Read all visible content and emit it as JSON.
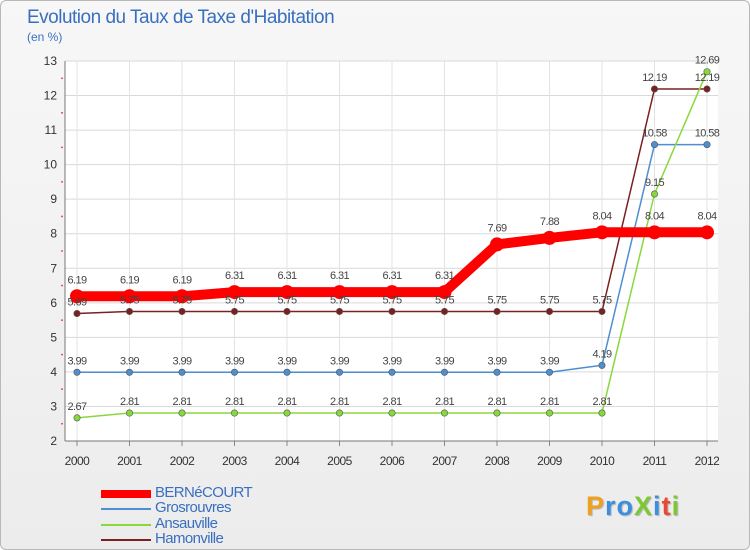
{
  "chart_data": {
    "type": "line",
    "title": "Evolution du Taux de Taxe d'Habitation",
    "subtitle": "(en %)",
    "x": [
      "2000",
      "2001",
      "2002",
      "2003",
      "2004",
      "2005",
      "2006",
      "2007",
      "2008",
      "2009",
      "2010",
      "2011",
      "2012"
    ],
    "ylim": [
      2,
      13
    ],
    "yticks": [
      "2",
      "3",
      "4",
      "5",
      "6",
      "7",
      "8",
      "9",
      "10",
      "11",
      "12",
      "13"
    ],
    "grid": true,
    "legend_position": "bottom-left",
    "series": [
      {
        "name": "BERNéCOURT",
        "color": "#ff0000",
        "values": [
          6.19,
          6.19,
          6.19,
          6.31,
          6.31,
          6.31,
          6.31,
          6.31,
          7.69,
          7.88,
          8.04,
          8.04,
          8.04
        ],
        "labels": [
          "6.19",
          "6.19",
          "6.19",
          "6.31",
          "6.31",
          "6.31",
          "6.31",
          "6.31",
          "7.69",
          "7.88",
          "8.04",
          "8.04",
          "8.04"
        ]
      },
      {
        "name": "Grosrouvres",
        "color": "#4d8fd0",
        "values": [
          3.99,
          3.99,
          3.99,
          3.99,
          3.99,
          3.99,
          3.99,
          3.99,
          3.99,
          3.99,
          4.19,
          10.58,
          10.58
        ],
        "labels": [
          "3.99",
          "3.99",
          "3.99",
          "3.99",
          "3.99",
          "3.99",
          "3.99",
          "3.99",
          "3.99",
          "3.99",
          "4.19",
          "10.58",
          "10.58"
        ]
      },
      {
        "name": "Ansauville",
        "color": "#88d83c",
        "values": [
          2.67,
          2.81,
          2.81,
          2.81,
          2.81,
          2.81,
          2.81,
          2.81,
          2.81,
          2.81,
          2.81,
          9.15,
          12.69
        ],
        "labels": [
          "2.67",
          "2.81",
          "2.81",
          "2.81",
          "2.81",
          "2.81",
          "2.81",
          "2.81",
          "2.81",
          "2.81",
          "2.81",
          "9.15",
          "12.69"
        ]
      },
      {
        "name": "Hamonville",
        "color": "#7a2020",
        "values": [
          5.69,
          5.75,
          5.75,
          5.75,
          5.75,
          5.75,
          5.75,
          5.75,
          5.75,
          5.75,
          5.75,
          12.19,
          12.19
        ],
        "labels": [
          "5.69",
          "5.75",
          "5.75",
          "5.75",
          "5.75",
          "5.75",
          "5.75",
          "5.75",
          "5.75",
          "5.75",
          "5.75",
          "12.19",
          "12.19"
        ]
      }
    ]
  },
  "logo": {
    "text": "ProXiti",
    "letters": [
      {
        "ch": "P",
        "color": "#f0a020"
      },
      {
        "ch": "r",
        "color": "#3a8fe0"
      },
      {
        "ch": "o",
        "color": "#3a8fe0"
      },
      {
        "ch": "X",
        "color": "#7cc832"
      },
      {
        "ch": "i",
        "color": "#3a8fe0"
      },
      {
        "ch": "t",
        "color": "#e84a30"
      },
      {
        "ch": "i",
        "color": "#7cc832"
      }
    ]
  }
}
